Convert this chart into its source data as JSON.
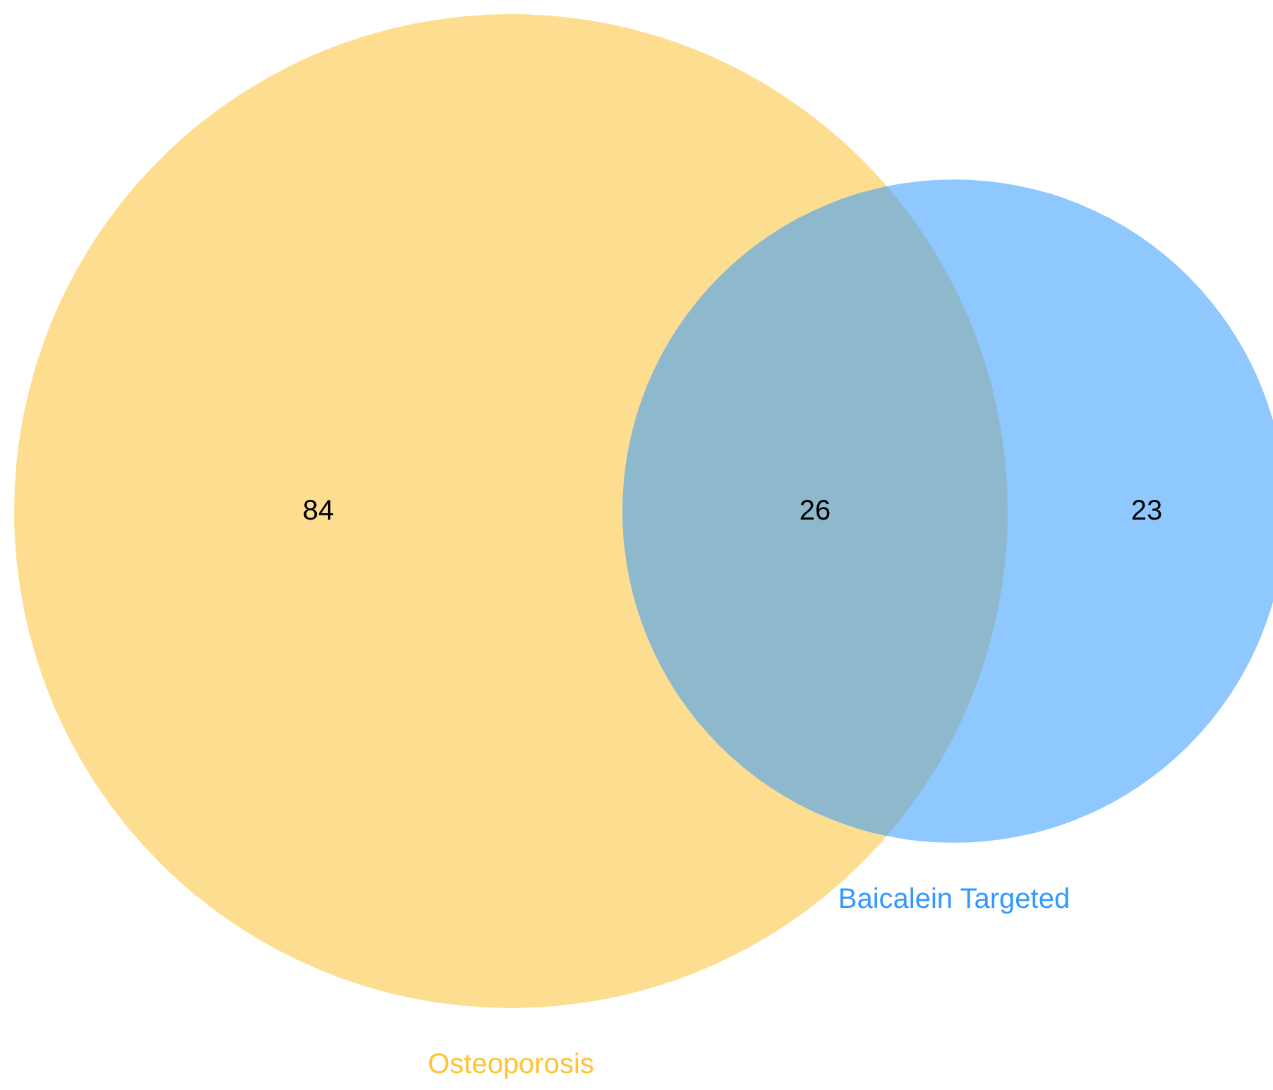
{
  "chart_data": {
    "type": "other",
    "categories": [
      null,
      null,
      null
    ],
    "values": [
      84,
      26,
      23
    ],
    "colors": [
      "#fddd8f",
      "#8eb8cc",
      "#8fc7ff"
    ],
    "data_labels": true,
    "annotations": [
      "Osteoporosis",
      "Baicalein Targeted"
    ]
  }
}
